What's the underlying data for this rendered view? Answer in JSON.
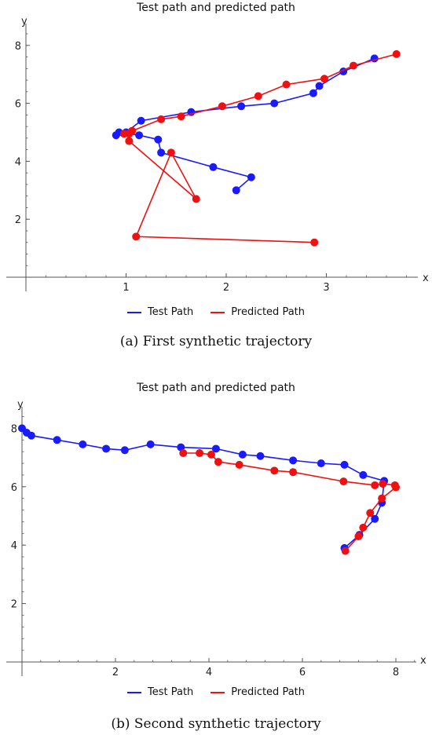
{
  "chart_data": [
    {
      "type": "line",
      "title": "Test path and predicted path",
      "xlabel": "x",
      "ylabel": "y",
      "x_ticks": [
        1,
        2,
        3
      ],
      "y_ticks": [
        2,
        4,
        6,
        8
      ],
      "grid": false,
      "legend_placement": "bottom",
      "caption": "(a) First synthetic trajectory",
      "series": [
        {
          "name": "Test Path",
          "color": "#1a1aff",
          "points": [
            [
              2.1,
              3.0
            ],
            [
              2.25,
              3.45
            ],
            [
              1.87,
              3.8
            ],
            [
              1.35,
              4.3
            ],
            [
              1.32,
              4.75
            ],
            [
              1.13,
              4.9
            ],
            [
              0.93,
              5.0
            ],
            [
              0.9,
              4.9
            ],
            [
              1.0,
              5.0
            ],
            [
              1.15,
              5.4
            ],
            [
              1.65,
              5.7
            ],
            [
              2.15,
              5.9
            ],
            [
              2.48,
              6.0
            ],
            [
              2.87,
              6.35
            ],
            [
              2.93,
              6.6
            ],
            [
              3.17,
              7.1
            ],
            [
              3.48,
              7.55
            ]
          ]
        },
        {
          "name": "Predicted Path",
          "color": "#ee1111",
          "points": [
            [
              2.88,
              1.2
            ],
            [
              1.1,
              1.4
            ],
            [
              1.45,
              4.3
            ],
            [
              1.7,
              2.7
            ],
            [
              1.03,
              4.7
            ],
            [
              1.03,
              4.95
            ],
            [
              0.98,
              4.95
            ],
            [
              1.06,
              5.05
            ],
            [
              1.35,
              5.45
            ],
            [
              1.55,
              5.55
            ],
            [
              1.96,
              5.9
            ],
            [
              2.32,
              6.25
            ],
            [
              2.6,
              6.65
            ],
            [
              2.98,
              6.85
            ],
            [
              3.27,
              7.3
            ],
            [
              3.7,
              7.7
            ]
          ]
        }
      ]
    },
    {
      "type": "line",
      "title": "Test path and predicted path",
      "xlabel": "x",
      "ylabel": "y",
      "x_ticks": [
        2,
        4,
        6,
        8
      ],
      "y_ticks": [
        2,
        4,
        6,
        8
      ],
      "grid": false,
      "legend_placement": "bottom",
      "caption": "(b) Second synthetic trajectory",
      "series": [
        {
          "name": "Test Path",
          "color": "#1a1aff",
          "points": [
            [
              6.9,
              3.9
            ],
            [
              7.22,
              4.35
            ],
            [
              7.55,
              4.9
            ],
            [
              7.7,
              5.45
            ],
            [
              7.75,
              6.2
            ],
            [
              7.3,
              6.4
            ],
            [
              6.9,
              6.75
            ],
            [
              6.4,
              6.8
            ],
            [
              5.8,
              6.9
            ],
            [
              5.1,
              7.05
            ],
            [
              4.72,
              7.1
            ],
            [
              4.15,
              7.3
            ],
            [
              3.4,
              7.35
            ],
            [
              2.75,
              7.45
            ],
            [
              2.2,
              7.25
            ],
            [
              1.8,
              7.3
            ],
            [
              1.3,
              7.45
            ],
            [
              0.75,
              7.6
            ],
            [
              0.2,
              7.75
            ],
            [
              0.1,
              7.85
            ],
            [
              0.0,
              8.0
            ]
          ]
        },
        {
          "name": "Predicted Path",
          "color": "#ee1111",
          "points": [
            [
              6.92,
              3.8
            ],
            [
              7.2,
              4.3
            ],
            [
              7.3,
              4.6
            ],
            [
              7.45,
              5.1
            ],
            [
              7.7,
              5.6
            ],
            [
              8.0,
              5.98
            ],
            [
              7.98,
              6.05
            ],
            [
              7.72,
              6.1
            ],
            [
              7.55,
              6.05
            ],
            [
              6.88,
              6.18
            ],
            [
              5.8,
              6.5
            ],
            [
              5.4,
              6.55
            ],
            [
              4.65,
              6.75
            ],
            [
              4.2,
              6.85
            ],
            [
              4.05,
              7.1
            ],
            [
              3.8,
              7.15
            ],
            [
              3.45,
              7.15
            ]
          ]
        }
      ]
    }
  ]
}
